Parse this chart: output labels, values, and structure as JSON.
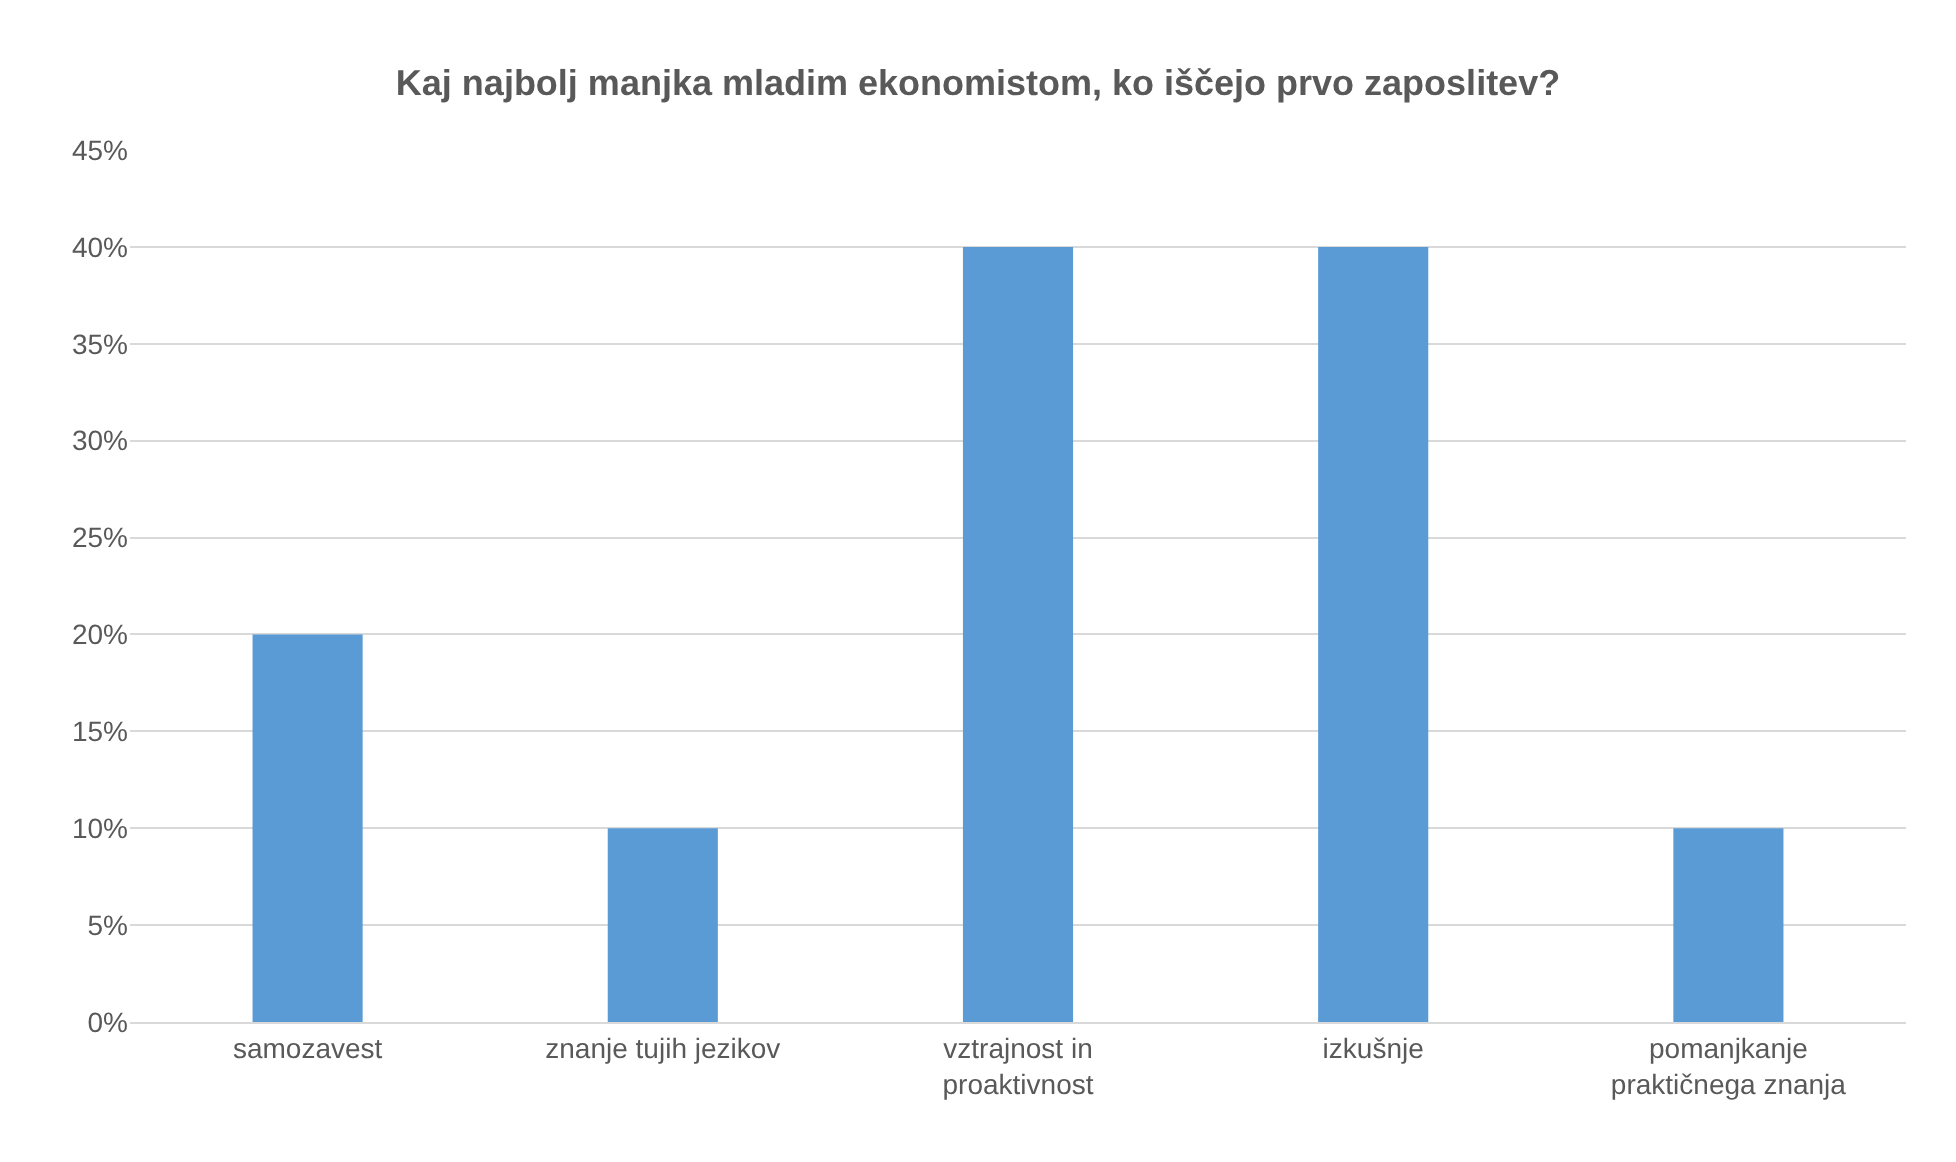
{
  "chart_data": {
    "type": "bar",
    "title": "Kaj najbolj manjka mladim ekonomistom, ko iščejo prvo zaposlitev?",
    "categories": [
      "samozavest",
      "znanje tujih jezikov",
      "vztrajnost in proaktivnost",
      "izkušnje",
      "pomanjkanje praktičnega znanja"
    ],
    "values": [
      20,
      10,
      40,
      40,
      10
    ],
    "color": "#5b9bd5",
    "ylim": [
      0,
      45
    ],
    "yticks": [
      {
        "value": 0,
        "label": "0%"
      },
      {
        "value": 5,
        "label": "5%"
      },
      {
        "value": 10,
        "label": "10%"
      },
      {
        "value": 15,
        "label": "15%"
      },
      {
        "value": 20,
        "label": "20%"
      },
      {
        "value": 25,
        "label": "25%"
      },
      {
        "value": 30,
        "label": "30%"
      },
      {
        "value": 35,
        "label": "35%"
      },
      {
        "value": 40,
        "label": "40%"
      },
      {
        "value": 45,
        "label": "45%"
      }
    ],
    "grid": "y"
  }
}
